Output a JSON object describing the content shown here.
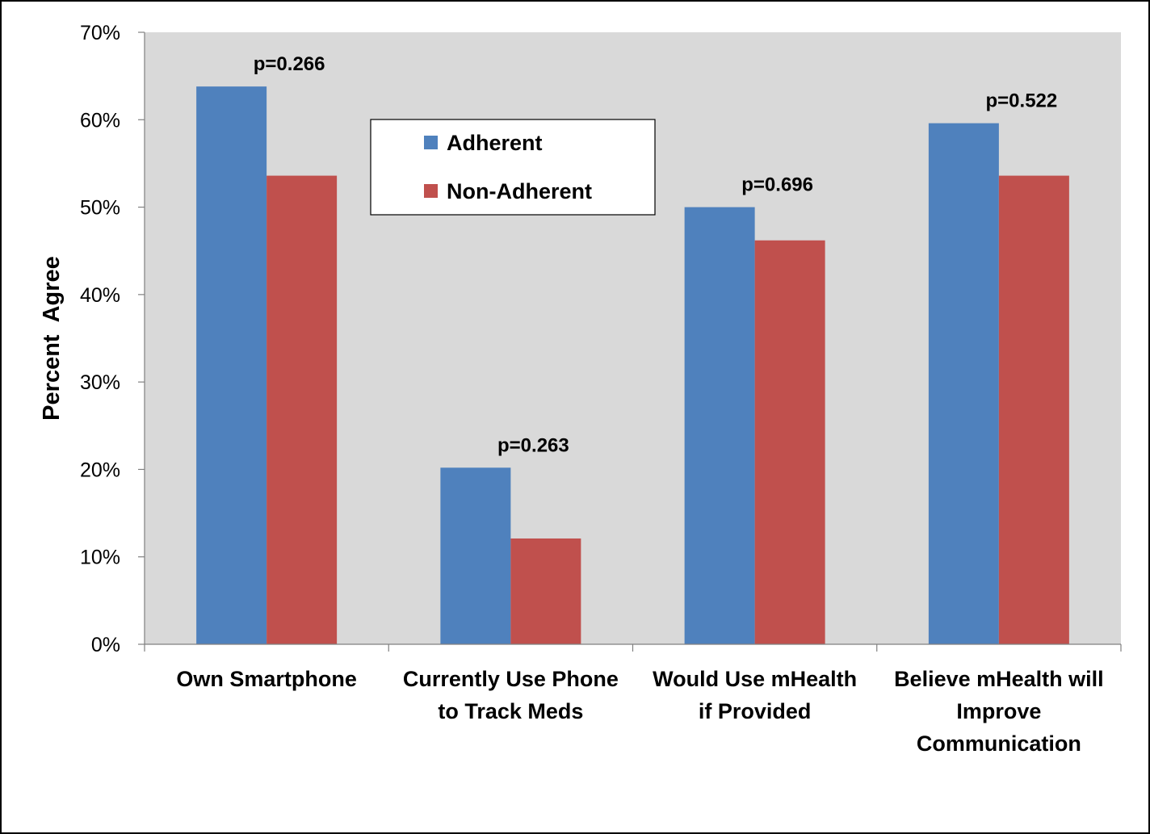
{
  "chart_data": {
    "type": "bar",
    "categories": [
      [
        "Own Smartphone"
      ],
      [
        "Currently Use Phone",
        "to Track Meds"
      ],
      [
        "Would Use mHealth",
        "if Provided"
      ],
      [
        "Believe mHealth will",
        "Improve",
        "Communication"
      ]
    ],
    "series": [
      {
        "name": "Adherent",
        "color": "#4F81BD",
        "values": [
          63.8,
          20.2,
          50.0,
          59.6
        ]
      },
      {
        "name": "Non-Adherent",
        "color": "#C0504D",
        "values": [
          53.6,
          12.1,
          46.2,
          53.6
        ]
      }
    ],
    "annotations": [
      "p=0.266",
      "p=0.263",
      "p=0.696",
      "p=0.522"
    ],
    "ylabel": "Percent  Agree",
    "xlabel": "",
    "ylim": [
      0,
      70
    ],
    "yticks": [
      "0%",
      "10%",
      "20%",
      "30%",
      "40%",
      "50%",
      "60%",
      "70%"
    ],
    "plot_background": "#D9D9D9",
    "legend": {
      "placement": "top-center",
      "entries": [
        "Adherent",
        "Non-Adherent"
      ]
    },
    "grid": false
  }
}
